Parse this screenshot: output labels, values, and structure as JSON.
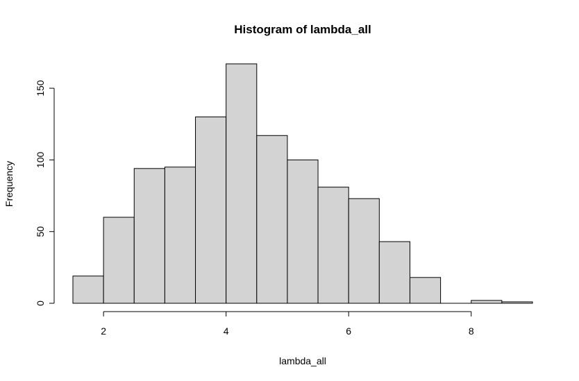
{
  "chart_data": {
    "type": "bar",
    "title": "Histogram of lambda_all",
    "xlabel": "lambda_all",
    "ylabel": "Frequency",
    "bin_edges": [
      1.5,
      2.0,
      2.5,
      3.0,
      3.5,
      4.0,
      4.5,
      5.0,
      5.5,
      6.0,
      6.5,
      7.0,
      7.5,
      8.0,
      8.5,
      9.0
    ],
    "values": [
      19,
      60,
      94,
      95,
      130,
      167,
      117,
      100,
      81,
      73,
      43,
      18,
      0,
      2,
      1
    ],
    "xlim": [
      1.5,
      9.0
    ],
    "ylim": [
      0,
      167
    ],
    "x_ticks": [
      2,
      4,
      6,
      8
    ],
    "x_tick_labels": [
      "2",
      "4",
      "6",
      "8"
    ],
    "y_ticks": [
      0,
      50,
      100,
      150
    ],
    "y_tick_labels": [
      "0",
      "50",
      "100",
      "150"
    ],
    "colors": {
      "bar_fill": "#d3d3d3",
      "bar_stroke": "#000000",
      "background": "#ffffff"
    },
    "grid": false,
    "legend": "none"
  }
}
